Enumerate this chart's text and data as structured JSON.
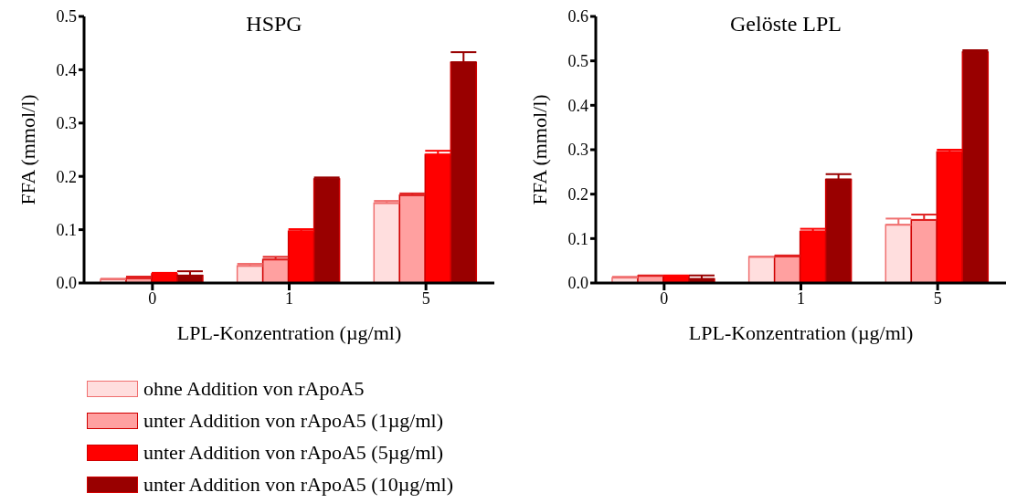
{
  "chart_data": [
    {
      "type": "bar",
      "title": "HSPG",
      "xlabel": "LPL-Konzentration (µg/ml)",
      "ylabel": "FFA (mmol/l)",
      "categories": [
        "0",
        "1",
        "5"
      ],
      "series": [
        {
          "name": "ohne Addition von rApoA5",
          "color": "#ffdede",
          "values": [
            0.007,
            0.032,
            0.15
          ],
          "errors": [
            [
              0.007,
              0.008
            ],
            [
              0.032,
              0.036
            ],
            [
              0.15,
              0.154
            ]
          ]
        },
        {
          "name": "unter Addition von rApoA5 (1µg/ml)",
          "color": "#ffa0a0",
          "values": [
            0.009,
            0.044,
            0.165
          ],
          "errors": [
            [
              0.009,
              0.012
            ],
            [
              0.044,
              0.049
            ],
            [
              0.165,
              0.168
            ]
          ]
        },
        {
          "name": "unter Addition von rApoA5 (5µg/ml)",
          "color": "#ff0000",
          "values": [
            0.017,
            0.097,
            0.241
          ],
          "errors": [
            [
              0.017,
              0.019
            ],
            [
              0.097,
              0.101
            ],
            [
              0.241,
              0.248
            ]
          ]
        },
        {
          "name": "unter Addition von rApoA5 (10µg/ml)",
          "color": "#990000",
          "values": [
            0.014,
            0.195,
            0.414
          ],
          "errors": [
            [
              0.014,
              0.022
            ],
            [
              0.195,
              0.198
            ],
            [
              0.414,
              0.433
            ]
          ]
        }
      ],
      "ylim": [
        0,
        0.5
      ],
      "yticks": [
        {
          "value": 0,
          "label": "0.0"
        },
        0.1,
        0.2,
        0.3,
        0.4,
        0.5
      ],
      "grid": false,
      "legend": "bottom"
    },
    {
      "type": "bar",
      "title": "Gelöste LPL",
      "xlabel": "LPL-Konzentration (µg/ml)",
      "ylabel": "FFA (mmol/l)",
      "categories": [
        "0",
        "1",
        "5"
      ],
      "series": [
        {
          "color": "#ffdede",
          "values": [
            0.012,
            0.059,
            0.131
          ],
          "errors": [
            [
              0.012,
              0.014
            ],
            [
              0.059,
              0.059
            ],
            [
              0.131,
              0.145
            ]
          ]
        },
        {
          "color": "#ffa0a0",
          "values": [
            0.016,
            0.06,
            0.142
          ],
          "errors": [
            [
              0.016,
              0.017
            ],
            [
              0.06,
              0.062
            ],
            [
              0.142,
              0.154
            ]
          ]
        },
        {
          "color": "#ff0000",
          "values": [
            0.016,
            0.116,
            0.295
          ],
          "errors": [
            [
              0.016,
              0.017
            ],
            [
              0.116,
              0.122
            ],
            [
              0.295,
              0.3
            ]
          ]
        },
        {
          "color": "#990000",
          "values": [
            0.009,
            0.233,
            0.52
          ],
          "errors": [
            [
              0.009,
              0.017
            ],
            [
              0.233,
              0.245
            ],
            [
              0.52,
              0.524
            ]
          ]
        }
      ],
      "ylim": [
        0,
        0.6
      ],
      "yticks": [
        {
          "value": 0,
          "label": "0.0"
        },
        0.1,
        0.2,
        0.3,
        0.4,
        0.5,
        0.6
      ],
      "grid": false,
      "legend": false
    }
  ]
}
